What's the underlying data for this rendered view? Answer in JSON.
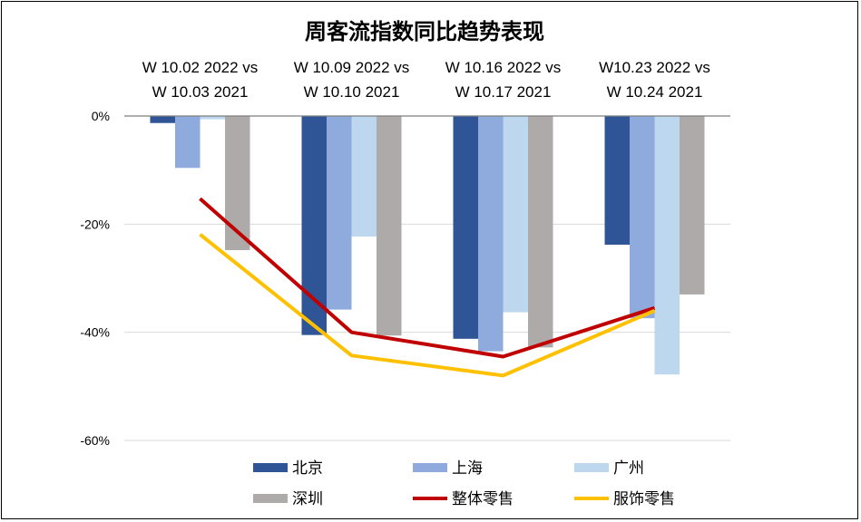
{
  "chart_data": {
    "type": "bar",
    "title": "周客流指数同比趋势表现",
    "categories": [
      [
        "W 10.02 2022  vs",
        "W 10.03 2021"
      ],
      [
        "W 10.09 2022  vs",
        "W 10.10 2021"
      ],
      [
        "W 10.16 2022  vs",
        "W 10.17 2021"
      ],
      [
        "W10.23 2022  vs",
        "W 10.24 2021"
      ]
    ],
    "ylim": [
      -60,
      0
    ],
    "yticks": [
      0,
      -20,
      -40,
      -60
    ],
    "ytick_labels": [
      "0%",
      "-20%",
      "-40%",
      "-60%"
    ],
    "x_axis_position": "top",
    "grid": true,
    "legend_position": "bottom",
    "series": [
      {
        "name": "北京",
        "type": "bar",
        "color": "#2F5597",
        "values": [
          -1.3,
          -40.5,
          -41.2,
          -23.8
        ]
      },
      {
        "name": "上海",
        "type": "bar",
        "color": "#8FAADC",
        "values": [
          -9.6,
          -35.8,
          -43.5,
          -37.4
        ]
      },
      {
        "name": "广州",
        "type": "bar",
        "color": "#BDD7EE",
        "values": [
          -0.6,
          -22.3,
          -36.3,
          -47.8
        ]
      },
      {
        "name": "深圳",
        "type": "bar",
        "color": "#AEAAAA",
        "values": [
          -24.8,
          -40.6,
          -42.8,
          -33.0
        ]
      },
      {
        "name": "整体零售",
        "type": "line",
        "color": "#C00000",
        "values": [
          -15.3,
          -40.0,
          -44.5,
          -35.5
        ]
      },
      {
        "name": "服饰零售",
        "type": "line",
        "color": "#FFC000",
        "values": [
          -21.9,
          -44.3,
          -48.0,
          -36.0
        ]
      }
    ]
  }
}
